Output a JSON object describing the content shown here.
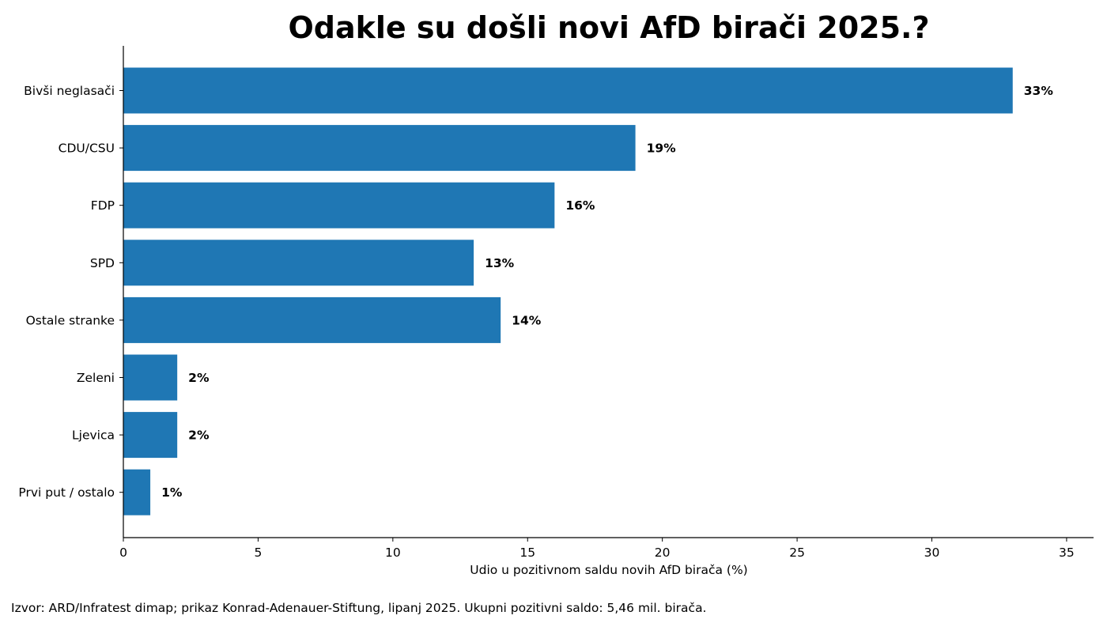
{
  "chart_data": {
    "type": "bar",
    "orientation": "horizontal",
    "title": "Odakle su došli novi AfD birači 2025.?",
    "xlabel": "Udio u pozitivnom saldu novih AfD birača (%)",
    "ylabel": "",
    "xlim": [
      0,
      36
    ],
    "x_ticks": [
      0,
      5,
      10,
      15,
      20,
      25,
      30,
      35
    ],
    "grid": false,
    "categories": [
      "Bivši neglasači",
      "CDU/CSU",
      "FDP",
      "SPD",
      "Ostale stranke",
      "Zeleni",
      "Ljevica",
      "Prvi put / ostalo"
    ],
    "values": [
      33,
      19,
      16,
      13,
      14,
      2,
      2,
      1
    ],
    "data_labels": [
      "33%",
      "19%",
      "16%",
      "13%",
      "14%",
      "2%",
      "2%",
      "1%"
    ],
    "bar_color": "#1f77b4"
  },
  "source_note": "Izvor: ARD/Infratest dimap; prikaz Konrad-Adenauer-Stiftung, lipanj 2025. Ukupni pozitivni saldo: 5,46 mil. birača."
}
